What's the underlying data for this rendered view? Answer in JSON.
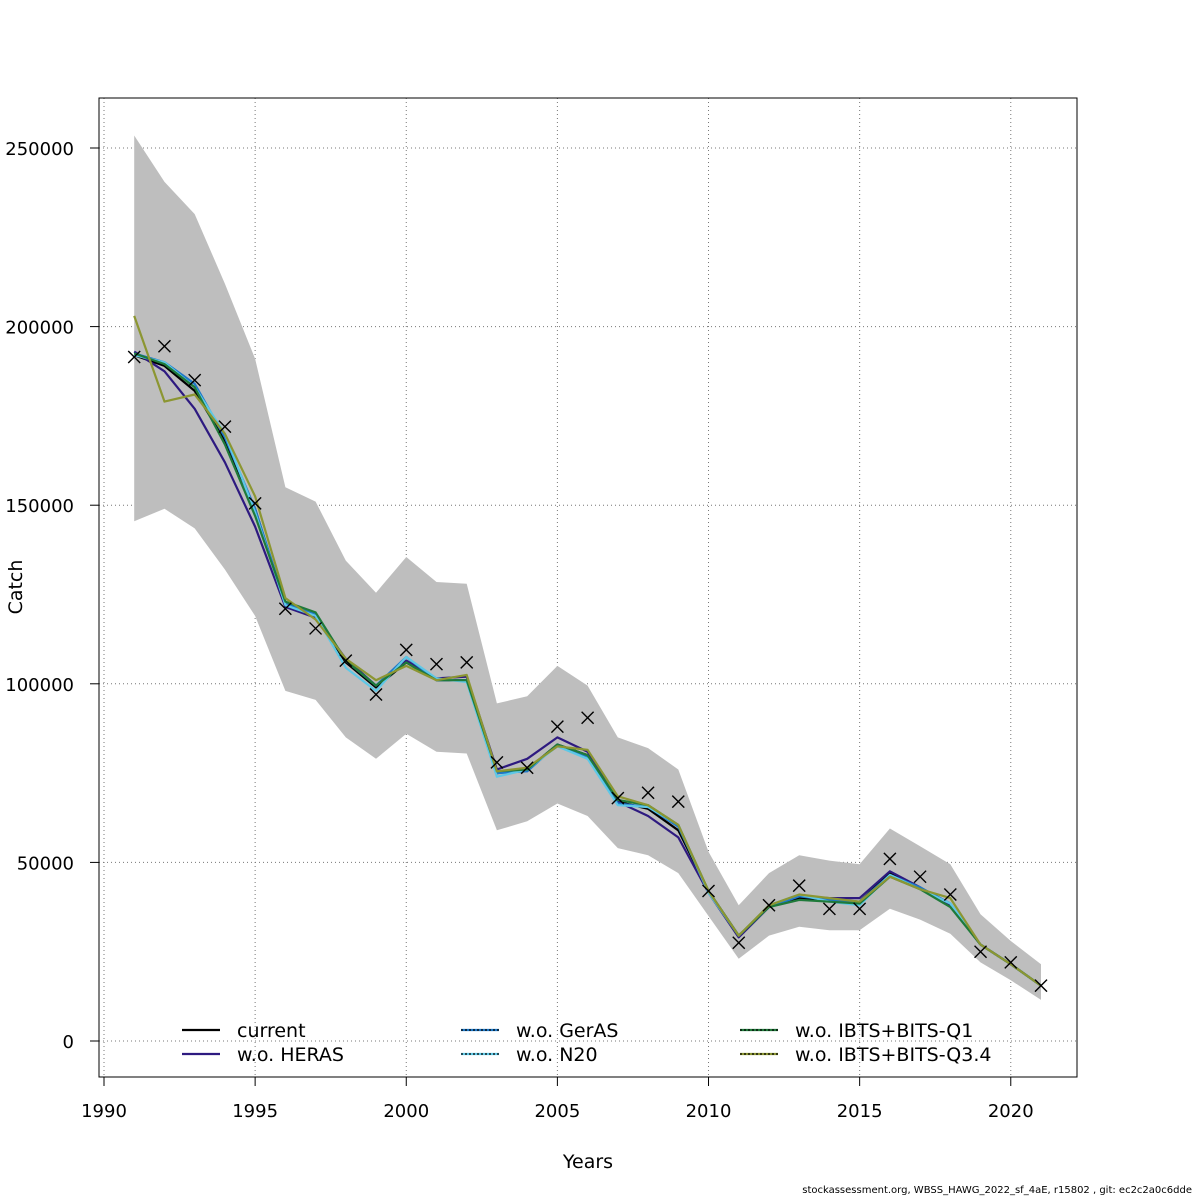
{
  "chart_data": {
    "type": "line",
    "title": "",
    "xlabel": "Years",
    "ylabel": "Catch",
    "xlim": [
      1990,
      2022
    ],
    "ylim": [
      -10000,
      265000
    ],
    "xticks": [
      1990,
      1995,
      2000,
      2005,
      2010,
      2015,
      2020
    ],
    "yticks": [
      0,
      50000,
      100000,
      150000,
      200000,
      250000
    ],
    "grid": true,
    "legend_position": "bottom",
    "x": [
      1991,
      1992,
      1993,
      1994,
      1995,
      1996,
      1997,
      1998,
      1999,
      2000,
      2001,
      2002,
      2003,
      2004,
      2005,
      2006,
      2007,
      2008,
      2009,
      2010,
      2011,
      2012,
      2013,
      2014,
      2015,
      2016,
      2017,
      2018,
      2019,
      2020,
      2021
    ],
    "confidence_band": {
      "color": "#bebebe",
      "lower": [
        145500,
        149000,
        143500,
        132000,
        119000,
        98000,
        95500,
        85000,
        79000,
        86000,
        81000,
        80500,
        59000,
        61500,
        66500,
        63000,
        54000,
        52000,
        47000,
        35000,
        23000,
        29500,
        32000,
        31000,
        31000,
        37000,
        34000,
        30000,
        22000,
        17000,
        11500
      ],
      "upper": [
        253500,
        240500,
        231500,
        212000,
        191000,
        155000,
        151000,
        134500,
        125500,
        135500,
        128500,
        128000,
        94500,
        96500,
        105000,
        99500,
        85000,
        82000,
        76000,
        53000,
        38000,
        47000,
        52000,
        50500,
        49500,
        59500,
        54500,
        49500,
        35500,
        28000,
        21500
      ]
    },
    "observed": {
      "marker": "x",
      "values": [
        191500,
        194500,
        185000,
        172000,
        150500,
        121000,
        115500,
        106500,
        97000,
        109500,
        105500,
        106000,
        78000,
        76500,
        88000,
        90500,
        68000,
        69500,
        67000,
        42000,
        27500,
        38000,
        43500,
        37000,
        37000,
        51000,
        46000,
        41000,
        25000,
        22000,
        15500
      ]
    },
    "series": [
      {
        "name": "current",
        "color": "#000000",
        "dashed": false,
        "values": [
          192000,
          189000,
          182000,
          168000,
          149000,
          122000,
          119000,
          106000,
          99000,
          106000,
          101000,
          101000,
          75000,
          76000,
          83000,
          80000,
          67000,
          65000,
          59000,
          42000,
          29500,
          37500,
          40000,
          39500,
          39000,
          47000,
          43000,
          38000,
          27000,
          21500,
          15500
        ]
      },
      {
        "name": "w.o. HERAS",
        "color": "#2e1a80",
        "dashed": false,
        "values": [
          193000,
          187500,
          177000,
          162000,
          144000,
          121500,
          118500,
          107000,
          99500,
          106500,
          101500,
          102000,
          76000,
          79000,
          85000,
          81000,
          67000,
          63000,
          57000,
          41500,
          29000,
          37500,
          40500,
          40000,
          40000,
          47500,
          43000,
          38000,
          27000,
          21500,
          15500
        ]
      },
      {
        "name": "w.o. GerAS",
        "color": "#1e78c8",
        "dashed": true,
        "values": [
          192500,
          190000,
          184000,
          169000,
          149000,
          122500,
          119500,
          106500,
          99500,
          107500,
          101000,
          101000,
          75000,
          75500,
          83000,
          79500,
          66500,
          65500,
          60000,
          42000,
          29500,
          37500,
          40500,
          39500,
          39000,
          46500,
          43000,
          38500,
          27000,
          21500,
          15500
        ]
      },
      {
        "name": "w.o. N20",
        "color": "#5ec8e6",
        "dashed": true,
        "values": [
          192000,
          190000,
          183000,
          170000,
          148000,
          122000,
          119000,
          104500,
          98000,
          107500,
          101500,
          100500,
          74000,
          76000,
          82500,
          79000,
          66000,
          65500,
          60500,
          41500,
          29500,
          38000,
          41000,
          39000,
          38000,
          46500,
          42500,
          38500,
          27000,
          21500,
          15500
        ]
      },
      {
        "name": "w.o. IBTS+BITS-Q1",
        "color": "#1f7a3a",
        "dashed": true,
        "values": [
          192500,
          189500,
          183000,
          167000,
          147000,
          123000,
          120000,
          106500,
          99500,
          106000,
          101000,
          101000,
          75500,
          76000,
          83000,
          80000,
          67500,
          66000,
          60500,
          42000,
          29500,
          37500,
          39500,
          39000,
          38500,
          46000,
          42500,
          37500,
          27000,
          21500,
          15500
        ]
      },
      {
        "name": "w.o. IBTS+BITS-Q3.4",
        "color": "#8c9632",
        "dashed": true,
        "values": [
          203000,
          179000,
          181000,
          170000,
          152500,
          124000,
          118000,
          107000,
          101000,
          105000,
          101000,
          102500,
          75500,
          76500,
          82500,
          81500,
          68500,
          66000,
          60500,
          42000,
          29500,
          38000,
          41000,
          40000,
          39000,
          46000,
          42500,
          40000,
          27000,
          21500,
          15500
        ]
      }
    ]
  },
  "footer": {
    "text": "stockassessment.org, WBSS_HAWG_2022_sf_4aE, r15802 , git: ec2c2a0c6dde"
  }
}
